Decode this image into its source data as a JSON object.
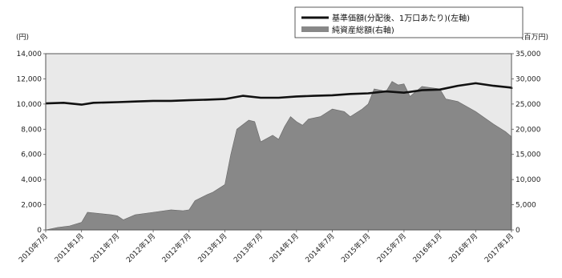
{
  "chart_data": {
    "type": "line",
    "title": "",
    "legend": {
      "position": "top-right",
      "entries": [
        {
          "label": "基準価額(分配後、1万口あたり)(左軸)",
          "series": "nav",
          "color": "#111111"
        },
        {
          "label": "純資産総額(右軸)",
          "series": "net_assets",
          "color": "#888888"
        }
      ]
    },
    "y_left": {
      "unit": "(円)",
      "min": 0,
      "max": 14000,
      "ticks": [
        0,
        2000,
        4000,
        6000,
        8000,
        10000,
        12000,
        14000
      ],
      "tick_labels": [
        "0",
        "2,000",
        "4,000",
        "6,000",
        "8,000",
        "10,000",
        "12,000",
        "14,000"
      ]
    },
    "y_right": {
      "unit": "(百万円)",
      "min": 0,
      "max": 35000,
      "ticks": [
        0,
        5000,
        10000,
        15000,
        20000,
        25000,
        30000,
        35000
      ],
      "tick_labels": [
        "0",
        "5,000",
        "10,000",
        "15,000",
        "20,000",
        "25,000",
        "30,000",
        "35,000"
      ]
    },
    "x_axis": {
      "min": "2010-07",
      "max": "2017-01",
      "ticks": [
        "2010-07",
        "2011-01",
        "2011-07",
        "2012-01",
        "2012-07",
        "2013-01",
        "2013-07",
        "2014-01",
        "2014-07",
        "2015-01",
        "2015-07",
        "2016-01",
        "2016-07",
        "2017-01"
      ],
      "tick_labels": [
        "2010年7月",
        "2011年1月",
        "2011年7月",
        "2012年1月",
        "2012年7月",
        "2013年1月",
        "2013年7月",
        "2014年1月",
        "2014年7月",
        "2015年1月",
        "2015年7月",
        "2016年1月",
        "2016年7月",
        "2017年1月"
      ]
    },
    "grid": false,
    "background_color": "#e9e9e9",
    "series": [
      {
        "id": "nav",
        "kind": "line",
        "axis": "left",
        "color": "#111111",
        "x": [
          "2010-07",
          "2010-10",
          "2011-01",
          "2011-03",
          "2011-07",
          "2011-10",
          "2012-01",
          "2012-04",
          "2012-07",
          "2012-10",
          "2013-01",
          "2013-04",
          "2013-07",
          "2013-10",
          "2014-01",
          "2014-04",
          "2014-07",
          "2014-10",
          "2015-01",
          "2015-04",
          "2015-07",
          "2015-10",
          "2016-01",
          "2016-04",
          "2016-07",
          "2016-10",
          "2017-01",
          "2017-03"
        ],
        "y": [
          10050,
          10100,
          9950,
          10100,
          10150,
          10200,
          10250,
          10250,
          10300,
          10350,
          10400,
          10650,
          10500,
          10500,
          10600,
          10650,
          10700,
          10800,
          10850,
          11000,
          10900,
          11100,
          11150,
          11450,
          11650,
          11450,
          11300,
          11200
        ]
      },
      {
        "id": "net_assets",
        "kind": "area",
        "axis": "right",
        "color": "#888888",
        "x": [
          "2010-07",
          "2010-09",
          "2010-11",
          "2011-01",
          "2011-02",
          "2011-06",
          "2011-07",
          "2011-08",
          "2011-10",
          "2012-01",
          "2012-04",
          "2012-06",
          "2012-07",
          "2012-08",
          "2012-10",
          "2012-11",
          "2013-01",
          "2013-02",
          "2013-03",
          "2013-05",
          "2013-06",
          "2013-07",
          "2013-09",
          "2013-10",
          "2013-11",
          "2013-12",
          "2014-01",
          "2014-02",
          "2014-03",
          "2014-05",
          "2014-07",
          "2014-09",
          "2014-10",
          "2014-12",
          "2015-01",
          "2015-02",
          "2015-04",
          "2015-05",
          "2015-06",
          "2015-07",
          "2015-08",
          "2015-10",
          "2016-01",
          "2016-02",
          "2016-04",
          "2016-07",
          "2016-10",
          "2016-12",
          "2017-01",
          "2017-02",
          "2017-03"
        ],
        "y": [
          0,
          500,
          800,
          1500,
          3500,
          3000,
          2800,
          2000,
          3000,
          3500,
          4000,
          3800,
          4000,
          5800,
          7000,
          7500,
          9000,
          15000,
          20000,
          21800,
          21500,
          17500,
          18800,
          18000,
          20500,
          22500,
          21500,
          20800,
          22000,
          22500,
          24000,
          23500,
          22500,
          24000,
          25000,
          28000,
          27500,
          29500,
          28800,
          29000,
          26500,
          28500,
          28000,
          26000,
          25500,
          23500,
          21000,
          19500,
          18500,
          18000,
          18500
        ]
      }
    ]
  }
}
